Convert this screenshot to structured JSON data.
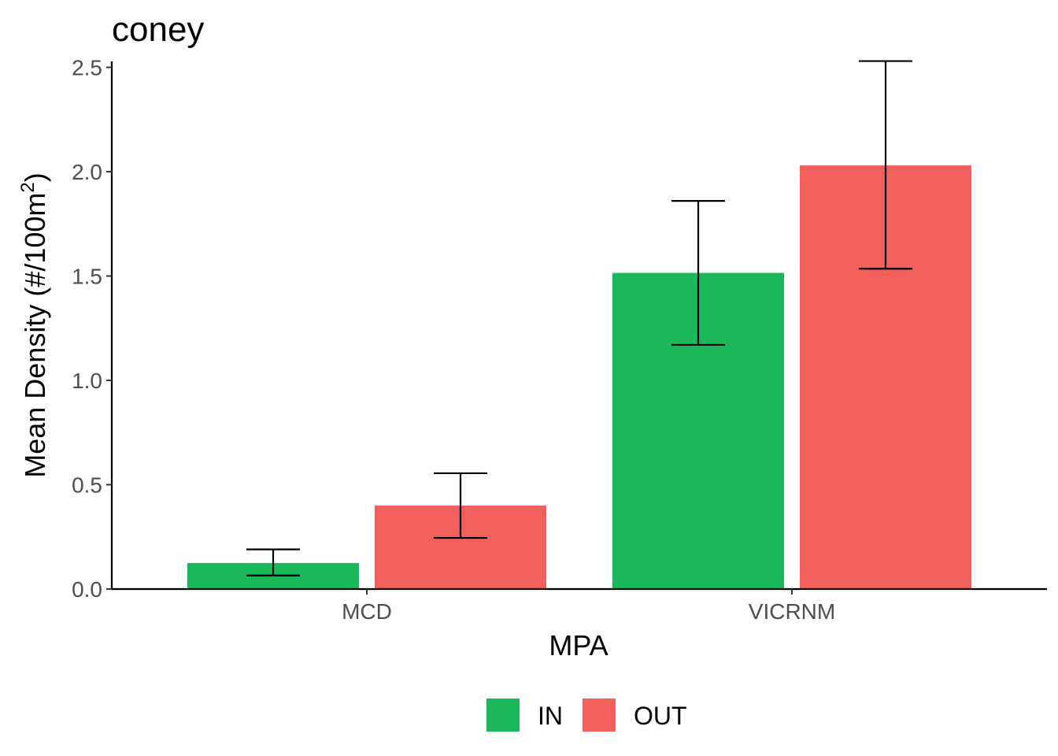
{
  "chart_data": {
    "type": "bar",
    "title": "coney",
    "xlabel": "MPA",
    "ylabel_main": "Mean Density (#/100m",
    "ylabel_sup": "2",
    "ylabel_close": ")",
    "categories": [
      "MCD",
      "VICRNM"
    ],
    "series": [
      {
        "name": "IN",
        "color": "#1bb85a",
        "values": [
          0.125,
          1.515
        ],
        "err_low": [
          0.065,
          1.17
        ],
        "err_high": [
          0.19,
          1.86
        ]
      },
      {
        "name": "OUT",
        "color": "#f2605c",
        "values": [
          0.4,
          2.03
        ],
        "err_low": [
          0.245,
          1.535
        ],
        "err_high": [
          0.555,
          2.53
        ]
      }
    ],
    "ylim": [
      0,
      2.53
    ],
    "yticks": [
      "0.0",
      "0.5",
      "1.0",
      "1.5",
      "2.0",
      "2.5"
    ],
    "grid": false,
    "legend_position": "bottom"
  }
}
